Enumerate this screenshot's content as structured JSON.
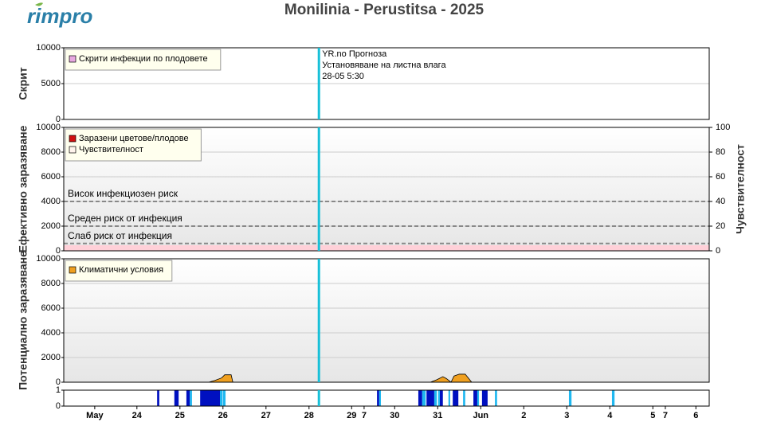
{
  "logo": "rimpro",
  "title": "Monilinia - Perustitsa - 2025",
  "xaxis": {
    "xlim": [
      0,
      15
    ],
    "xticks": [
      {
        "value": 0.72,
        "label": "May"
      },
      {
        "value": 1.7,
        "label": "24"
      },
      {
        "value": 2.7,
        "label": "25"
      },
      {
        "value": 3.7,
        "label": "26"
      },
      {
        "value": 4.7,
        "label": "27"
      },
      {
        "value": 5.7,
        "label": "28"
      },
      {
        "value": 6.69,
        "label": "29"
      },
      {
        "value": 6.98,
        "label": "7"
      },
      {
        "value": 7.69,
        "label": "30"
      },
      {
        "value": 8.69,
        "label": "31"
      },
      {
        "value": 9.69,
        "label": "Jun"
      },
      {
        "value": 10.69,
        "label": "2"
      },
      {
        "value": 11.69,
        "label": "3"
      },
      {
        "value": 12.69,
        "label": "4"
      },
      {
        "value": 13.69,
        "label": "5"
      },
      {
        "value": 13.98,
        "label": "7"
      },
      {
        "value": 14.69,
        "label": "6"
      }
    ]
  },
  "forecast": {
    "x": 5.93,
    "lines": [
      "YR.no Прогноза",
      "Установяване на листна влага",
      "28-05 5:30"
    ]
  },
  "chart_data": [
    {
      "type": "area",
      "ylabel": "Скрит",
      "ylim": [
        0,
        10000
      ],
      "yticks": [
        0,
        5000,
        10000
      ],
      "grid": true,
      "series": [
        {
          "name": "Скрити инфекции по плодовете",
          "color": "#e8a8e0",
          "x": [],
          "values": []
        }
      ]
    },
    {
      "type": "area",
      "ylabel": "Ефективно заразяване",
      "y2label": "Чувствителност",
      "ylim": [
        0,
        10000
      ],
      "yticks": [
        0,
        2000,
        4000,
        6000,
        8000,
        10000
      ],
      "y2lim": [
        0,
        100
      ],
      "y2ticks": [
        0,
        20,
        40,
        60,
        80,
        100
      ],
      "grid": true,
      "thresholds": [
        {
          "value": 4000,
          "label": "Висок инфекциозен риск"
        },
        {
          "value": 2000,
          "label": "Среден риск от инфекция"
        },
        {
          "value": 600,
          "label": "Слаб риск от инфекция"
        }
      ],
      "series": [
        {
          "name": "Заразени цветове/плодове",
          "color": "#d01010",
          "x": [],
          "values": []
        },
        {
          "name": "Чувствителност",
          "color": "#fff4ec",
          "axis": "y2",
          "x": [],
          "values": []
        }
      ]
    },
    {
      "type": "area",
      "ylabel": "Потенциално заразяване",
      "ylim": [
        0,
        10000
      ],
      "yticks": [
        0,
        2000,
        4000,
        6000,
        8000,
        10000
      ],
      "grid": true,
      "series": [
        {
          "name": "Климатични условия",
          "color": "#f0a020",
          "x": [
            3.37,
            3.52,
            3.67,
            3.74,
            3.89,
            3.93,
            6.0,
            8.52,
            8.67,
            8.81,
            8.89,
            9.0,
            9.07,
            9.19,
            9.33,
            9.48
          ],
          "values": [
            0,
            150,
            350,
            600,
            600,
            0,
            null,
            0,
            200,
            450,
            300,
            0,
            500,
            650,
            650,
            0
          ]
        }
      ]
    },
    {
      "type": "bar",
      "ylim": [
        0,
        1
      ],
      "yticks": [
        0,
        1
      ],
      "series": [
        {
          "color": "#0010c0",
          "start": [
            2.17,
            2.57,
            2.85,
            3.17,
            7.28,
            8.24,
            8.43,
            8.74,
            9.04,
            9.52,
            9.72
          ],
          "end": [
            2.22,
            2.67,
            2.93,
            3.63,
            7.33,
            8.33,
            8.61,
            8.81,
            9.17,
            9.61,
            9.85
          ],
          "values": [
            1,
            1,
            1,
            1,
            1,
            1,
            1,
            1,
            1,
            1,
            1
          ]
        },
        {
          "color": "#20b8f0",
          "start": [
            2.93,
            3.63,
            3.7,
            7.33,
            8.33,
            8.61,
            8.7,
            8.94,
            9.28,
            9.61,
            10.02,
            11.74,
            12.74
          ],
          "end": [
            2.98,
            3.69,
            3.76,
            7.37,
            8.41,
            8.67,
            8.74,
            8.98,
            9.33,
            9.65,
            10.07,
            11.8,
            12.8
          ],
          "values": [
            1,
            1,
            1,
            1,
            1,
            1,
            1,
            1,
            1,
            1,
            1,
            1,
            1
          ]
        }
      ]
    }
  ]
}
